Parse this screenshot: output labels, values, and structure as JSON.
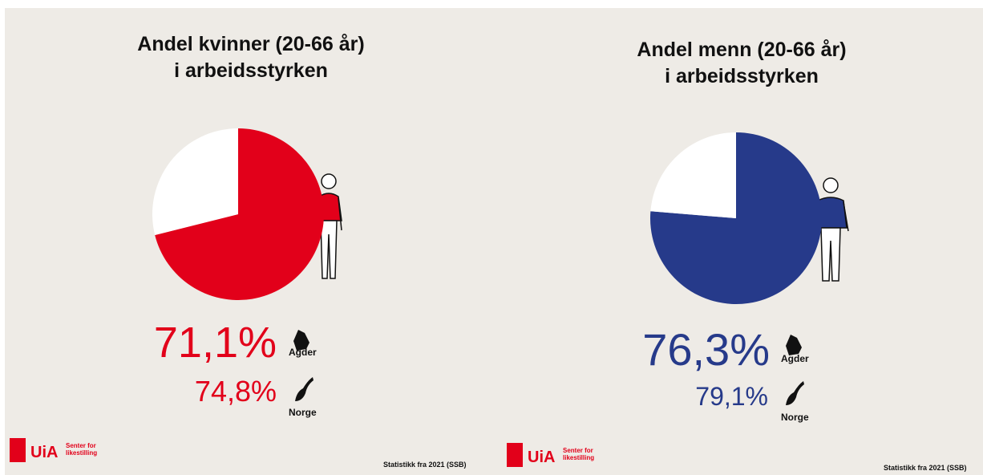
{
  "chart_data": [
    {
      "type": "pie",
      "title": [
        "Andel kvinner (20-66 år)",
        "i arbeidsstyrken"
      ],
      "values": [
        71.1,
        28.9
      ],
      "value_labels": [
        "71,1%",
        null
      ],
      "colors": [
        "#e2001a",
        "#ffffff"
      ],
      "region": "Agder",
      "comparison": {
        "label": "Norge",
        "value": 74.8,
        "value_label": "74,8%"
      }
    },
    {
      "type": "pie",
      "title": [
        "Andel menn (20-66 år)",
        "i arbeidsstyrken"
      ],
      "values": [
        76.3,
        23.7
      ],
      "value_labels": [
        "76,3%",
        null
      ],
      "colors": [
        "#263a8a",
        "#ffffff"
      ],
      "region": "Agder",
      "comparison": {
        "label": "Norge",
        "value": 79.1,
        "value_label": "79,1%"
      }
    }
  ],
  "logo": {
    "name": "UiA",
    "subtitle": [
      "Senter for",
      "likestilling"
    ]
  },
  "source": "Statistikk fra 2021 (SSB)"
}
